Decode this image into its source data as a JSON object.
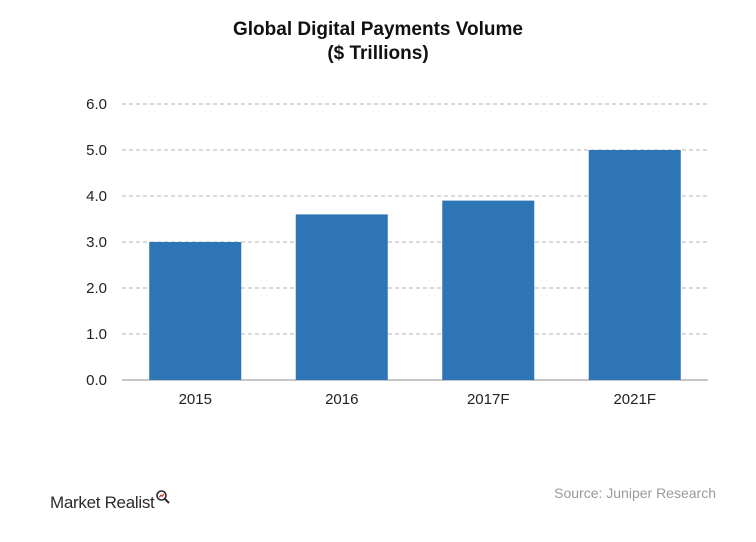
{
  "chart_data": {
    "type": "bar",
    "title": "Global Digital Payments Volume",
    "subtitle": "($ Trillions)",
    "categories": [
      "2015",
      "2016",
      "2017F",
      "2021F"
    ],
    "values": [
      3.0,
      3.6,
      3.9,
      5.0
    ],
    "ylim": [
      0,
      6
    ],
    "yticks": [
      "0.0",
      "1.0",
      "2.0",
      "3.0",
      "4.0",
      "5.0",
      "6.0"
    ],
    "grid": true,
    "bar_color": "#2e75b6"
  },
  "source": "Source: Juniper Research",
  "logo": {
    "text": "Market Realist",
    "icon": "magnifier-icon"
  }
}
